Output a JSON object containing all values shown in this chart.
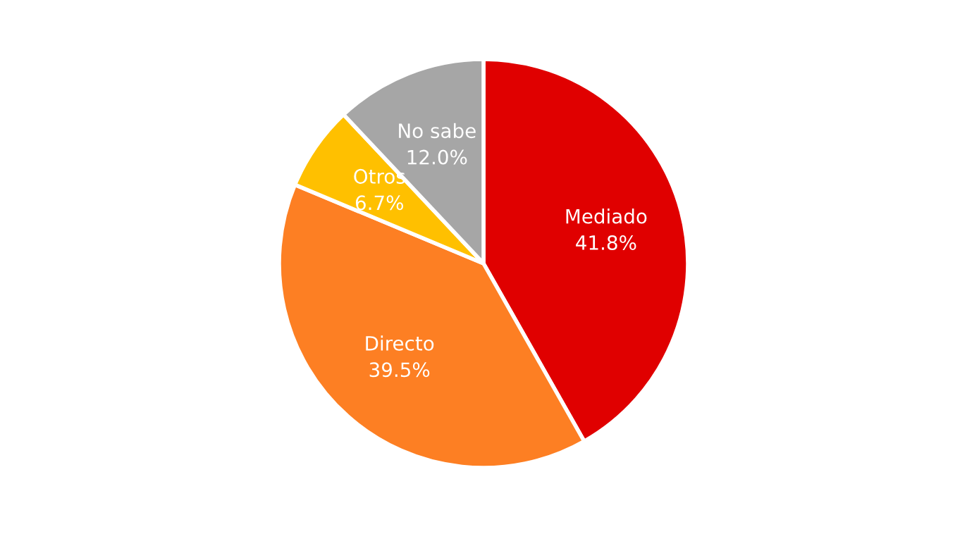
{
  "chart_data": {
    "type": "pie",
    "categories": [
      "Mediado",
      "Directo",
      "Otros",
      "No sabe"
    ],
    "values": [
      41.8,
      39.5,
      6.7,
      12.0
    ],
    "value_labels": [
      "41.8%",
      "39.5%",
      "6.7%",
      "12.0%"
    ],
    "colors": [
      "#e00000",
      "#fd7f23",
      "#ffc000",
      "#a6a6a6"
    ],
    "legend": false
  }
}
